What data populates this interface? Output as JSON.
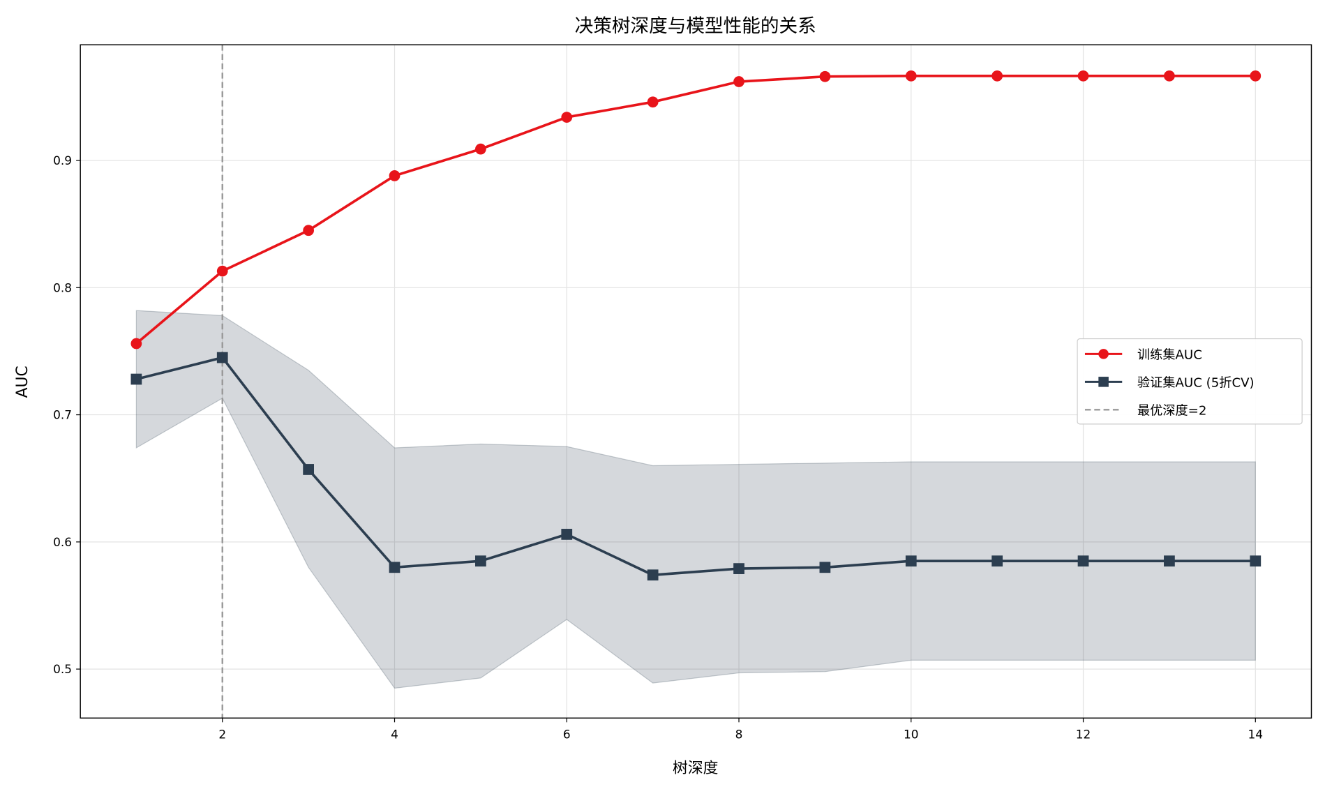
{
  "chart_data": {
    "type": "line",
    "title": "决策树深度与模型性能的关系",
    "xlabel": "树深度",
    "ylabel": "AUC",
    "xlim": [
      0.35,
      14.65
    ],
    "ylim": [
      0.4615,
      0.991
    ],
    "xticks": [
      2,
      4,
      6,
      8,
      10,
      12,
      14
    ],
    "yticks": [
      0.5,
      0.6,
      0.7,
      0.8,
      0.9
    ],
    "ytick_labels": [
      "0.5",
      "0.6",
      "0.7",
      "0.8",
      "0.9"
    ],
    "grid": true,
    "legend_position": "center-right",
    "x": [
      1,
      2,
      3,
      4,
      5,
      6,
      7,
      8,
      9,
      10,
      11,
      12,
      13,
      14
    ],
    "series": [
      {
        "name": "训练集AUC",
        "color": "#e8141a",
        "marker": "circle",
        "values": [
          0.756,
          0.813,
          0.845,
          0.888,
          0.909,
          0.934,
          0.946,
          0.962,
          0.966,
          0.9665,
          0.9665,
          0.9665,
          0.9665,
          0.9665
        ]
      },
      {
        "name": "验证集AUC (5折CV)",
        "color": "#2c3e50",
        "marker": "square",
        "values": [
          0.728,
          0.745,
          0.657,
          0.58,
          0.585,
          0.606,
          0.574,
          0.579,
          0.58,
          0.585,
          0.585,
          0.585,
          0.585,
          0.585
        ],
        "band_upper": [
          0.782,
          0.778,
          0.735,
          0.674,
          0.677,
          0.675,
          0.66,
          0.661,
          0.662,
          0.663,
          0.663,
          0.663,
          0.663,
          0.663
        ],
        "band_lower": [
          0.674,
          0.713,
          0.58,
          0.485,
          0.493,
          0.539,
          0.489,
          0.497,
          0.498,
          0.507,
          0.507,
          0.507,
          0.507,
          0.507
        ]
      }
    ],
    "vline": {
      "x": 2,
      "label": "最优深度=2",
      "color": "#999999",
      "style": "dashed"
    }
  }
}
